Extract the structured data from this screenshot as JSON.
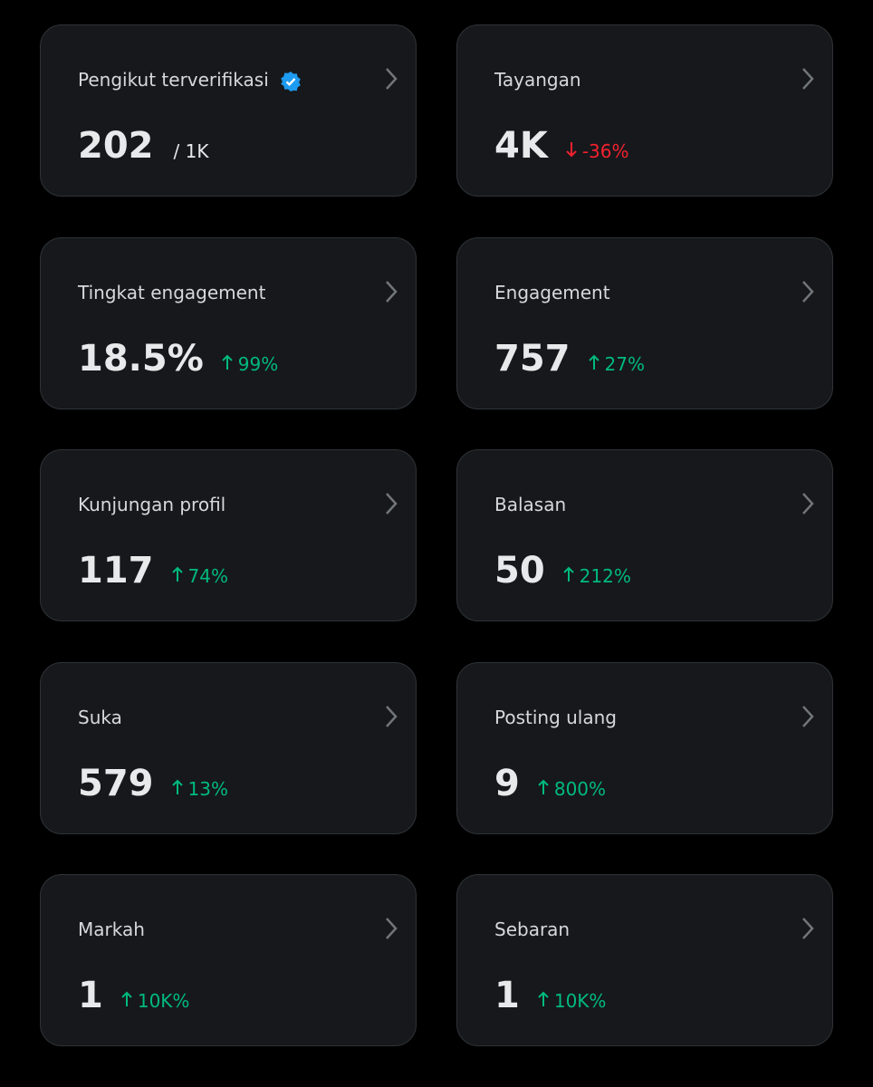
{
  "cards": [
    {
      "label": "Pengikut terverifikasi",
      "value": "202",
      "target": "/ 1K",
      "verified": true
    },
    {
      "label": "Tayangan",
      "value": "4K",
      "change": "-36%",
      "trend": "down"
    },
    {
      "label": "Tingkat engagement",
      "value": "18.5%",
      "change": "99%",
      "trend": "up"
    },
    {
      "label": "Engagement",
      "value": "757",
      "change": "27%",
      "trend": "up"
    },
    {
      "label": "Kunjungan profil",
      "value": "117",
      "change": "74%",
      "trend": "up"
    },
    {
      "label": "Balasan",
      "value": "50",
      "change": "212%",
      "trend": "up"
    },
    {
      "label": "Suka",
      "value": "579",
      "change": "13%",
      "trend": "up"
    },
    {
      "label": "Posting ulang",
      "value": "9",
      "change": "800%",
      "trend": "up"
    },
    {
      "label": "Markah",
      "value": "1",
      "change": "10K%",
      "trend": "up"
    },
    {
      "label": "Sebaran",
      "value": "1",
      "change": "10K%",
      "trend": "up"
    }
  ]
}
